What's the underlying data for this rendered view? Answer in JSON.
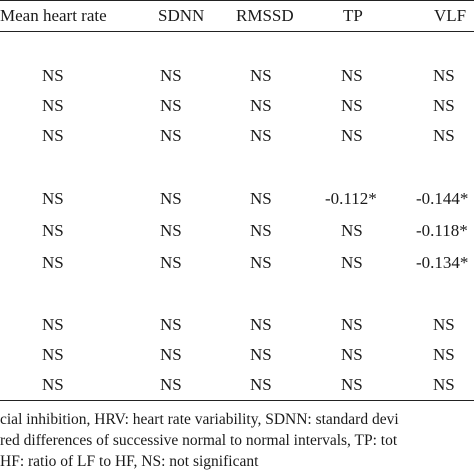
{
  "table": {
    "headers": [
      "Mean heart rate",
      "SDNN",
      "RMSSD",
      "TP",
      "VLF"
    ],
    "rows": [
      [
        "NS",
        "NS",
        "NS",
        "NS",
        "NS"
      ],
      [
        "NS",
        "NS",
        "NS",
        "NS",
        "NS"
      ],
      [
        "NS",
        "NS",
        "NS",
        "NS",
        "NS"
      ],
      [
        "NS",
        "NS",
        "NS",
        "-0.112*",
        "-0.144*"
      ],
      [
        "NS",
        "NS",
        "NS",
        "NS",
        "-0.118*"
      ],
      [
        "NS",
        "NS",
        "NS",
        "NS",
        "-0.134*"
      ],
      [
        "NS",
        "NS",
        "NS",
        "NS",
        "NS"
      ],
      [
        "NS",
        "NS",
        "NS",
        "NS",
        "NS"
      ],
      [
        "NS",
        "NS",
        "NS",
        "NS",
        "NS"
      ]
    ]
  },
  "footnotes": [
    "cial inhibition, HRV: heart rate variability, SDNN: standard devi",
    "red differences of successive normal to normal intervals, TP: tot",
    "HF: ratio of LF to HF, NS: not significant"
  ]
}
